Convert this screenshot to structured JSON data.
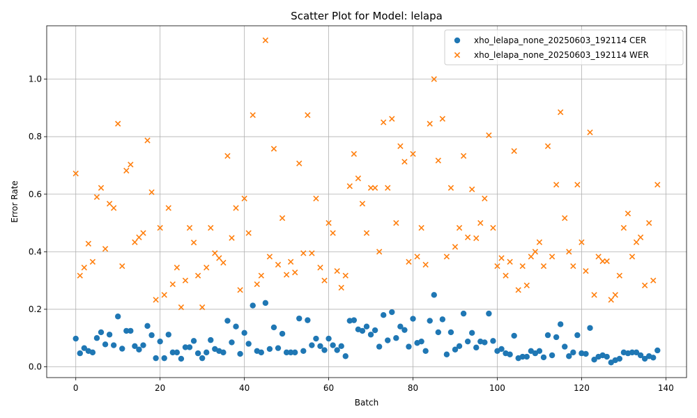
{
  "chart_data": {
    "type": "scatter",
    "title": "Scatter Plot for Model: lelapa",
    "xlabel": "Batch",
    "ylabel": "Error Rate",
    "xlim": [
      -6.9,
      144.9
    ],
    "ylim": [
      -0.0375,
      1.1855
    ],
    "xticks": [
      0,
      20,
      40,
      60,
      80,
      100,
      120,
      140
    ],
    "yticks": [
      0.0,
      0.2,
      0.4,
      0.6,
      0.8,
      1.0
    ],
    "ytick_labels": [
      "0.0",
      "0.2",
      "0.4",
      "0.6",
      "0.8",
      "1.0"
    ],
    "grid": true,
    "legend_position": "top-right",
    "series": [
      {
        "name": "xho_lelapa_none_20250603_192114 CER",
        "marker": "circle",
        "color": "#1f77b4",
        "x": [
          0,
          1,
          2,
          3,
          4,
          5,
          6,
          7,
          8,
          9,
          10,
          11,
          12,
          13,
          14,
          15,
          16,
          17,
          18,
          19,
          20,
          21,
          22,
          23,
          24,
          25,
          26,
          27,
          28,
          29,
          30,
          31,
          32,
          33,
          34,
          35,
          36,
          37,
          38,
          39,
          40,
          41,
          42,
          43,
          44,
          45,
          46,
          47,
          48,
          49,
          50,
          51,
          52,
          53,
          54,
          55,
          56,
          57,
          58,
          59,
          60,
          61,
          62,
          63,
          64,
          65,
          66,
          67,
          68,
          69,
          70,
          71,
          72,
          73,
          74,
          75,
          76,
          77,
          78,
          79,
          80,
          81,
          82,
          83,
          84,
          85,
          86,
          87,
          88,
          89,
          90,
          91,
          92,
          93,
          94,
          95,
          96,
          97,
          98,
          99,
          100,
          101,
          102,
          103,
          104,
          105,
          106,
          107,
          108,
          109,
          110,
          111,
          112,
          113,
          114,
          115,
          116,
          117,
          118,
          119,
          120,
          121,
          122,
          123,
          124,
          125,
          126,
          127,
          128,
          129,
          130,
          131,
          132,
          133,
          134,
          135,
          136,
          137,
          138
        ],
        "y": [
          0.098,
          0.047,
          0.065,
          0.055,
          0.05,
          0.1,
          0.12,
          0.078,
          0.112,
          0.075,
          0.175,
          0.063,
          0.125,
          0.125,
          0.072,
          0.06,
          0.075,
          0.142,
          0.11,
          0.03,
          0.088,
          0.03,
          0.112,
          0.05,
          0.05,
          0.028,
          0.068,
          0.068,
          0.09,
          0.047,
          0.03,
          0.05,
          0.093,
          0.062,
          0.055,
          0.05,
          0.16,
          0.085,
          0.14,
          0.045,
          0.118,
          0.08,
          0.213,
          0.055,
          0.05,
          0.222,
          0.062,
          0.137,
          0.065,
          0.115,
          0.05,
          0.05,
          0.05,
          0.168,
          0.055,
          0.162,
          0.075,
          0.098,
          0.072,
          0.058,
          0.098,
          0.075,
          0.058,
          0.072,
          0.037,
          0.16,
          0.162,
          0.13,
          0.125,
          0.14,
          0.112,
          0.127,
          0.07,
          0.18,
          0.092,
          0.19,
          0.1,
          0.14,
          0.128,
          0.07,
          0.167,
          0.083,
          0.088,
          0.055,
          0.16,
          0.25,
          0.12,
          0.165,
          0.043,
          0.12,
          0.06,
          0.072,
          0.185,
          0.088,
          0.118,
          0.067,
          0.088,
          0.085,
          0.185,
          0.09,
          0.055,
          0.062,
          0.047,
          0.043,
          0.108,
          0.03,
          0.035,
          0.035,
          0.055,
          0.047,
          0.055,
          0.033,
          0.11,
          0.04,
          0.103,
          0.148,
          0.07,
          0.037,
          0.05,
          0.11,
          0.047,
          0.045,
          0.135,
          0.025,
          0.035,
          0.04,
          0.035,
          0.015,
          0.023,
          0.028,
          0.05,
          0.047,
          0.05,
          0.05,
          0.04,
          0.028,
          0.037,
          0.032,
          0.057
        ]
      },
      {
        "name": "xho_lelapa_none_20250603_192114 WER",
        "marker": "x",
        "color": "#ff7f0e",
        "x": [
          0,
          1,
          2,
          3,
          4,
          5,
          6,
          7,
          8,
          9,
          10,
          11,
          12,
          13,
          14,
          15,
          16,
          17,
          18,
          19,
          20,
          21,
          22,
          23,
          24,
          25,
          26,
          27,
          28,
          29,
          30,
          31,
          32,
          33,
          34,
          35,
          36,
          37,
          38,
          39,
          40,
          41,
          42,
          43,
          44,
          45,
          46,
          47,
          48,
          49,
          50,
          51,
          52,
          53,
          54,
          55,
          56,
          57,
          58,
          59,
          60,
          61,
          62,
          63,
          64,
          65,
          66,
          67,
          68,
          69,
          70,
          71,
          72,
          73,
          74,
          75,
          76,
          77,
          78,
          79,
          80,
          81,
          82,
          83,
          84,
          85,
          86,
          87,
          88,
          89,
          90,
          91,
          92,
          93,
          94,
          95,
          96,
          97,
          98,
          99,
          100,
          101,
          102,
          103,
          104,
          105,
          106,
          107,
          108,
          109,
          110,
          111,
          112,
          113,
          114,
          115,
          116,
          117,
          118,
          119,
          120,
          121,
          122,
          123,
          124,
          125,
          126,
          127,
          128,
          129,
          130,
          131,
          132,
          133,
          134,
          135,
          136,
          137,
          138
        ],
        "y": [
          0.672,
          0.317,
          0.345,
          0.428,
          0.365,
          0.59,
          0.622,
          0.41,
          0.567,
          0.552,
          0.845,
          0.35,
          0.682,
          0.703,
          0.433,
          0.45,
          0.465,
          0.787,
          0.607,
          0.233,
          0.483,
          0.25,
          0.552,
          0.287,
          0.345,
          0.207,
          0.3,
          0.483,
          0.432,
          0.317,
          0.207,
          0.345,
          0.483,
          0.395,
          0.378,
          0.362,
          0.733,
          0.448,
          0.552,
          0.267,
          0.585,
          0.465,
          0.875,
          0.287,
          0.317,
          1.135,
          0.383,
          0.758,
          0.355,
          0.517,
          0.32,
          0.365,
          0.328,
          0.707,
          0.395,
          0.875,
          0.395,
          0.585,
          0.345,
          0.3,
          0.5,
          0.465,
          0.333,
          0.275,
          0.317,
          0.628,
          0.74,
          0.655,
          0.567,
          0.465,
          0.622,
          0.622,
          0.4,
          0.85,
          0.622,
          0.862,
          0.5,
          0.767,
          0.713,
          0.365,
          0.74,
          0.383,
          0.483,
          0.355,
          0.845,
          1.0,
          0.717,
          0.862,
          0.383,
          0.622,
          0.417,
          0.483,
          0.733,
          0.45,
          0.617,
          0.447,
          0.5,
          0.585,
          0.805,
          0.483,
          0.35,
          0.378,
          0.317,
          0.365,
          0.75,
          0.267,
          0.35,
          0.283,
          0.383,
          0.4,
          0.433,
          0.35,
          0.767,
          0.383,
          0.633,
          0.885,
          0.517,
          0.4,
          0.35,
          0.633,
          0.433,
          0.333,
          0.815,
          0.25,
          0.383,
          0.367,
          0.367,
          0.233,
          0.25,
          0.317,
          0.483,
          0.533,
          0.383,
          0.433,
          0.45,
          0.283,
          0.5,
          0.3,
          0.633
        ]
      }
    ]
  }
}
